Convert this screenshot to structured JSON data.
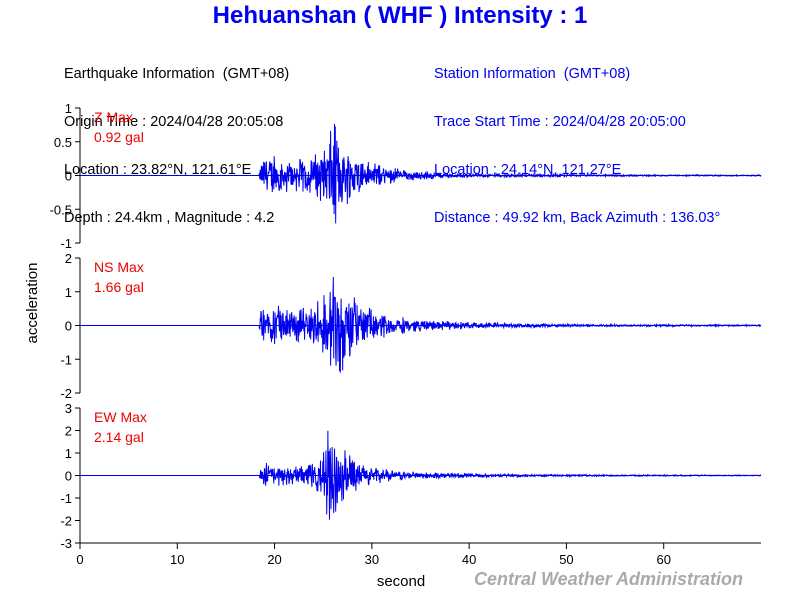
{
  "title": "Hehuanshan ( WHF ) Intensity : 1",
  "earthquake": {
    "header": "Earthquake Information  (GMT+08)",
    "origin_time": "Origin Time : 2024/04/28 20:05:08",
    "location": "Location : 23.82°N, 121.61°E",
    "depth_mag": "Depth : 24.4km , Magnitude : 4.2"
  },
  "station": {
    "header": "Station Information  (GMT+08)",
    "trace_start": "Trace Start Time : 2024/04/28 20:05:00",
    "location": "Location : 24.14°N, 121.27°E",
    "distance": "Distance : 49.92 km, Back Azimuth : 136.03°"
  },
  "brand": "Central Weather Administration",
  "colors": {
    "trace": "#0000ee",
    "label": "#ee0000",
    "title": "#0000ee",
    "brand": "#aaaaaa"
  },
  "chart_data": {
    "type": "line",
    "xlabel": "second",
    "ylabel": "acceleration",
    "xlim": [
      0,
      70
    ],
    "xticks": [
      "0",
      "10",
      "20",
      "30",
      "40",
      "50",
      "60"
    ],
    "panels": [
      {
        "name": "Z",
        "label_line1": "Z Max",
        "label_line2": "0.92 gal",
        "ylim": [
          -1,
          1
        ],
        "yticks": [
          "1",
          "0.5",
          "0",
          "-0.5",
          "-1"
        ],
        "envelope": {
          "t": [
            0,
            18.4,
            18.6,
            19,
            20,
            21,
            22,
            23,
            24,
            25,
            25.5,
            26,
            26.5,
            27,
            28,
            29,
            30,
            32,
            35,
            40,
            45,
            50,
            60,
            70
          ],
          "amp": [
            0.005,
            0.005,
            0.2,
            0.32,
            0.3,
            0.26,
            0.25,
            0.28,
            0.3,
            0.45,
            0.55,
            0.92,
            0.6,
            0.5,
            0.4,
            0.3,
            0.2,
            0.12,
            0.06,
            0.03,
            0.02,
            0.015,
            0.01,
            0.01
          ]
        }
      },
      {
        "name": "NS",
        "label_line1": "NS Max",
        "label_line2": "1.66 gal",
        "ylim": [
          -2,
          2
        ],
        "yticks": [
          "2",
          "1",
          "0",
          "-1",
          "-2"
        ],
        "envelope": {
          "t": [
            0,
            18.4,
            18.6,
            19,
            20,
            21,
            22,
            23,
            24,
            25,
            25.5,
            26,
            26.5,
            27,
            28,
            29,
            30,
            32,
            35,
            40,
            45,
            50,
            60,
            70
          ],
          "amp": [
            0.01,
            0.01,
            0.45,
            0.7,
            0.65,
            0.55,
            0.5,
            0.55,
            0.65,
            0.9,
            1.2,
            1.5,
            1.66,
            1.4,
            1.0,
            0.7,
            0.5,
            0.3,
            0.18,
            0.1,
            0.06,
            0.04,
            0.03,
            0.02
          ]
        }
      },
      {
        "name": "EW",
        "label_line1": "EW Max",
        "label_line2": "2.14 gal",
        "ylim": [
          -3,
          3
        ],
        "yticks": [
          "3",
          "2",
          "1",
          "0",
          "-1",
          "-2",
          "-3"
        ],
        "envelope": {
          "t": [
            0,
            18.4,
            18.6,
            19,
            20,
            21,
            22,
            23,
            24,
            25,
            25.5,
            26,
            26.5,
            27,
            28,
            29,
            30,
            32,
            35,
            40,
            45,
            50,
            60,
            70
          ],
          "amp": [
            0.01,
            0.01,
            0.4,
            0.6,
            0.5,
            0.45,
            0.4,
            0.45,
            0.55,
            1.0,
            2.14,
            1.8,
            1.5,
            1.3,
            0.8,
            0.55,
            0.4,
            0.25,
            0.15,
            0.09,
            0.06,
            0.04,
            0.03,
            0.02
          ]
        }
      }
    ]
  }
}
